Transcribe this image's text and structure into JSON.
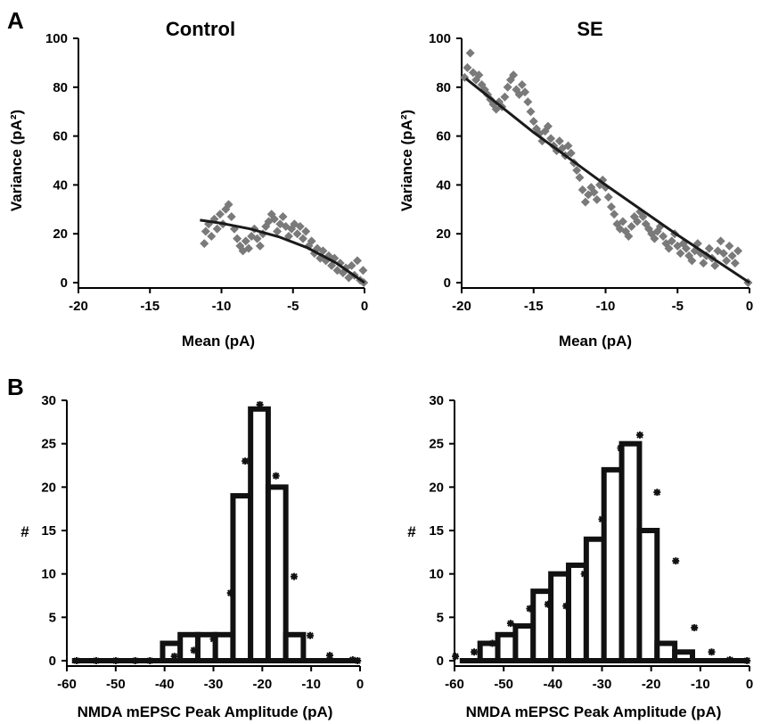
{
  "panel_labels": [
    "A",
    "B"
  ],
  "chart_data": [
    {
      "id": "A-control",
      "type": "scatter",
      "title": "Control",
      "xlabel": "Mean (pA)",
      "ylabel": "Variance (pA²)",
      "xlim": [
        -20,
        0
      ],
      "ylim": [
        0,
        100
      ],
      "xticks": [
        -20,
        -15,
        -10,
        -5,
        0
      ],
      "yticks": [
        0,
        20,
        40,
        60,
        80,
        100
      ],
      "points_color": "#7a7a7a",
      "fit_color": "#1a1a1a",
      "points": [
        [
          -11.2,
          16
        ],
        [
          -11.1,
          21
        ],
        [
          -10.9,
          24
        ],
        [
          -10.7,
          19
        ],
        [
          -10.5,
          26
        ],
        [
          -10.3,
          22
        ],
        [
          -10.1,
          28
        ],
        [
          -9.9,
          24
        ],
        [
          -9.7,
          30
        ],
        [
          -9.5,
          32
        ],
        [
          -9.3,
          27
        ],
        [
          -9.1,
          22
        ],
        [
          -8.9,
          18
        ],
        [
          -8.7,
          15
        ],
        [
          -8.5,
          13
        ],
        [
          -8.3,
          17
        ],
        [
          -8.1,
          14
        ],
        [
          -7.9,
          19
        ],
        [
          -7.7,
          22
        ],
        [
          -7.5,
          18
        ],
        [
          -7.3,
          15
        ],
        [
          -7.1,
          20
        ],
        [
          -6.9,
          23
        ],
        [
          -6.7,
          25
        ],
        [
          -6.5,
          28
        ],
        [
          -6.3,
          26
        ],
        [
          -6.1,
          21
        ],
        [
          -5.9,
          24
        ],
        [
          -5.7,
          27
        ],
        [
          -5.5,
          23
        ],
        [
          -5.3,
          19
        ],
        [
          -5.1,
          22
        ],
        [
          -4.9,
          24
        ],
        [
          -4.7,
          20
        ],
        [
          -4.5,
          23
        ],
        [
          -4.3,
          18
        ],
        [
          -4.1,
          21
        ],
        [
          -3.9,
          15
        ],
        [
          -3.7,
          17
        ],
        [
          -3.5,
          12
        ],
        [
          -3.3,
          14
        ],
        [
          -3.1,
          10
        ],
        [
          -2.9,
          13
        ],
        [
          -2.7,
          9
        ],
        [
          -2.5,
          11
        ],
        [
          -2.3,
          7
        ],
        [
          -2.1,
          10
        ],
        [
          -1.9,
          5
        ],
        [
          -1.7,
          8
        ],
        [
          -1.5,
          4
        ],
        [
          -1.3,
          6
        ],
        [
          -1.1,
          2
        ],
        [
          -0.9,
          7
        ],
        [
          -0.7,
          3
        ],
        [
          -0.5,
          9
        ],
        [
          -0.3,
          1
        ],
        [
          -0.1,
          5
        ],
        [
          -0.05,
          0
        ]
      ],
      "fit": [
        [
          -11.5,
          25.6
        ],
        [
          -10,
          24.3
        ],
        [
          -8,
          22
        ],
        [
          -6,
          18.8
        ],
        [
          -4,
          14.3
        ],
        [
          -2,
          8.1
        ],
        [
          0,
          0
        ]
      ]
    },
    {
      "id": "A-SE",
      "type": "scatter",
      "title": "SE",
      "xlabel": "Mean (pA)",
      "ylabel": "Variance (pA²)",
      "xlim": [
        -20,
        0
      ],
      "ylim": [
        0,
        100
      ],
      "xticks": [
        -20,
        -15,
        -10,
        -5,
        0
      ],
      "yticks": [
        0,
        20,
        40,
        60,
        80,
        100
      ],
      "points_color": "#7a7a7a",
      "fit_color": "#1a1a1a",
      "points": [
        [
          -19.8,
          84
        ],
        [
          -19.6,
          88
        ],
        [
          -19.4,
          94
        ],
        [
          -19.2,
          86
        ],
        [
          -19,
          83
        ],
        [
          -18.8,
          85
        ],
        [
          -18.6,
          81
        ],
        [
          -18.4,
          79
        ],
        [
          -18.2,
          77
        ],
        [
          -18,
          75
        ],
        [
          -17.8,
          73
        ],
        [
          -17.6,
          71
        ],
        [
          -17.4,
          74
        ],
        [
          -17.2,
          72
        ],
        [
          -17,
          76
        ],
        [
          -16.8,
          80
        ],
        [
          -16.6,
          83
        ],
        [
          -16.4,
          85
        ],
        [
          -16.2,
          79
        ],
        [
          -16,
          77
        ],
        [
          -15.8,
          81
        ],
        [
          -15.6,
          78
        ],
        [
          -15.4,
          74
        ],
        [
          -15.2,
          70
        ],
        [
          -15,
          66
        ],
        [
          -14.8,
          63
        ],
        [
          -14.6,
          61
        ],
        [
          -14.4,
          58
        ],
        [
          -14.2,
          62
        ],
        [
          -14,
          64
        ],
        [
          -13.8,
          59
        ],
        [
          -13.6,
          56
        ],
        [
          -13.4,
          54
        ],
        [
          -13.2,
          58
        ],
        [
          -13,
          55
        ],
        [
          -12.8,
          52
        ],
        [
          -12.6,
          56
        ],
        [
          -12.4,
          53
        ],
        [
          -12.2,
          49
        ],
        [
          -12,
          46
        ],
        [
          -11.8,
          43
        ],
        [
          -11.6,
          38
        ],
        [
          -11.4,
          33
        ],
        [
          -11.2,
          36
        ],
        [
          -11,
          39
        ],
        [
          -10.8,
          37
        ],
        [
          -10.6,
          34
        ],
        [
          -10.4,
          40
        ],
        [
          -10.2,
          42
        ],
        [
          -10,
          39
        ],
        [
          -9.8,
          35
        ],
        [
          -9.6,
          31
        ],
        [
          -9.4,
          28
        ],
        [
          -9.2,
          24
        ],
        [
          -9,
          22
        ],
        [
          -8.8,
          25
        ],
        [
          -8.6,
          21
        ],
        [
          -8.4,
          19
        ],
        [
          -8.2,
          23
        ],
        [
          -8,
          27
        ],
        [
          -7.8,
          25
        ],
        [
          -7.6,
          29
        ],
        [
          -7.4,
          27
        ],
        [
          -7.2,
          24
        ],
        [
          -7,
          22
        ],
        [
          -6.8,
          20
        ],
        [
          -6.6,
          18
        ],
        [
          -6.4,
          21
        ],
        [
          -6.2,
          23
        ],
        [
          -6,
          19
        ],
        [
          -5.8,
          16
        ],
        [
          -5.6,
          14
        ],
        [
          -5.4,
          17
        ],
        [
          -5.2,
          20
        ],
        [
          -5,
          15
        ],
        [
          -4.8,
          12
        ],
        [
          -4.6,
          16
        ],
        [
          -4.4,
          14
        ],
        [
          -4.2,
          11
        ],
        [
          -4,
          9
        ],
        [
          -3.8,
          13
        ],
        [
          -3.6,
          16
        ],
        [
          -3.4,
          12
        ],
        [
          -3.2,
          8
        ],
        [
          -3,
          11
        ],
        [
          -2.8,
          14
        ],
        [
          -2.6,
          10
        ],
        [
          -2.4,
          7
        ],
        [
          -2.2,
          13
        ],
        [
          -2,
          17
        ],
        [
          -1.8,
          12
        ],
        [
          -1.6,
          9
        ],
        [
          -1.4,
          15
        ],
        [
          -1.2,
          11
        ],
        [
          -1,
          8
        ],
        [
          -0.8,
          13
        ],
        [
          -0.1,
          0
        ]
      ],
      "fit": [
        [
          -19.7,
          83.5
        ],
        [
          -15,
          61.5
        ],
        [
          -10,
          40
        ],
        [
          -5,
          19.5
        ],
        [
          0,
          0
        ]
      ]
    },
    {
      "id": "B-control",
      "type": "bar",
      "xlabel": "NMDA mEPSC Peak Amplitude (pA)",
      "ylabel": "#",
      "xlim": [
        -60,
        0
      ],
      "ylim": [
        0,
        30
      ],
      "xticks": [
        -60,
        -50,
        -40,
        -30,
        -20,
        -10,
        0
      ],
      "yticks": [
        0,
        5,
        10,
        15,
        20,
        25,
        30
      ],
      "bin_width": 3.6,
      "bin_centers": [
        -56.6,
        -53,
        -49.4,
        -45.8,
        -42.2,
        -38.6,
        -35,
        -31.4,
        -27.8,
        -24.2,
        -20.6,
        -17,
        -13.4,
        -9.8,
        -6.2,
        -2.6
      ],
      "values": [
        0,
        0,
        0,
        0,
        0,
        2,
        3,
        3,
        3,
        19,
        29,
        20,
        3,
        0,
        0,
        0
      ],
      "fit_points": [
        [
          -58,
          0
        ],
        [
          -54,
          0
        ],
        [
          -50,
          0
        ],
        [
          -46,
          0
        ],
        [
          -43,
          0
        ],
        [
          -38,
          0.5
        ],
        [
          -34,
          1.2
        ],
        [
          -30,
          2.5
        ],
        [
          -26.5,
          7.8
        ],
        [
          -23.5,
          23
        ],
        [
          -20.5,
          29.5
        ],
        [
          -17.2,
          21.3
        ],
        [
          -13.5,
          9.7
        ],
        [
          -10.2,
          2.9
        ],
        [
          -6.2,
          0.6
        ],
        [
          -1.5,
          0.1
        ],
        [
          -0.5,
          0
        ]
      ]
    },
    {
      "id": "B-SE",
      "type": "bar",
      "xlabel": "NMDA mEPSC Peak Amplitude (pA)",
      "ylabel": "#",
      "xlim": [
        -60,
        0
      ],
      "ylim": [
        0,
        30
      ],
      "xticks": [
        -60,
        -50,
        -40,
        -30,
        -20,
        -10,
        0
      ],
      "yticks": [
        0,
        5,
        10,
        15,
        20,
        25,
        30
      ],
      "bin_width": 3.6,
      "bin_centers": [
        -56.6,
        -53,
        -49.4,
        -45.8,
        -42.2,
        -38.6,
        -35,
        -31.4,
        -27.8,
        -24.2,
        -20.6,
        -17,
        -13.4,
        -9.8,
        -6.2,
        -2.6
      ],
      "values": [
        0,
        2,
        3,
        4,
        8,
        10,
        11,
        14,
        22,
        25,
        15,
        2,
        1,
        0,
        0,
        0
      ],
      "fit_points": [
        [
          -59.8,
          0.5
        ],
        [
          -56,
          1
        ],
        [
          -52.3,
          2
        ],
        [
          -48.6,
          4.3
        ],
        [
          -44.7,
          6
        ],
        [
          -41,
          6.5
        ],
        [
          -37.3,
          6.3
        ],
        [
          -33.6,
          10
        ],
        [
          -30,
          16.3
        ],
        [
          -26.2,
          24.5
        ],
        [
          -22.3,
          26
        ],
        [
          -18.8,
          19.4
        ],
        [
          -15,
          11.5
        ],
        [
          -11.2,
          3.8
        ],
        [
          -7.7,
          1
        ],
        [
          -4,
          0.1
        ],
        [
          -0.5,
          0
        ]
      ]
    }
  ]
}
